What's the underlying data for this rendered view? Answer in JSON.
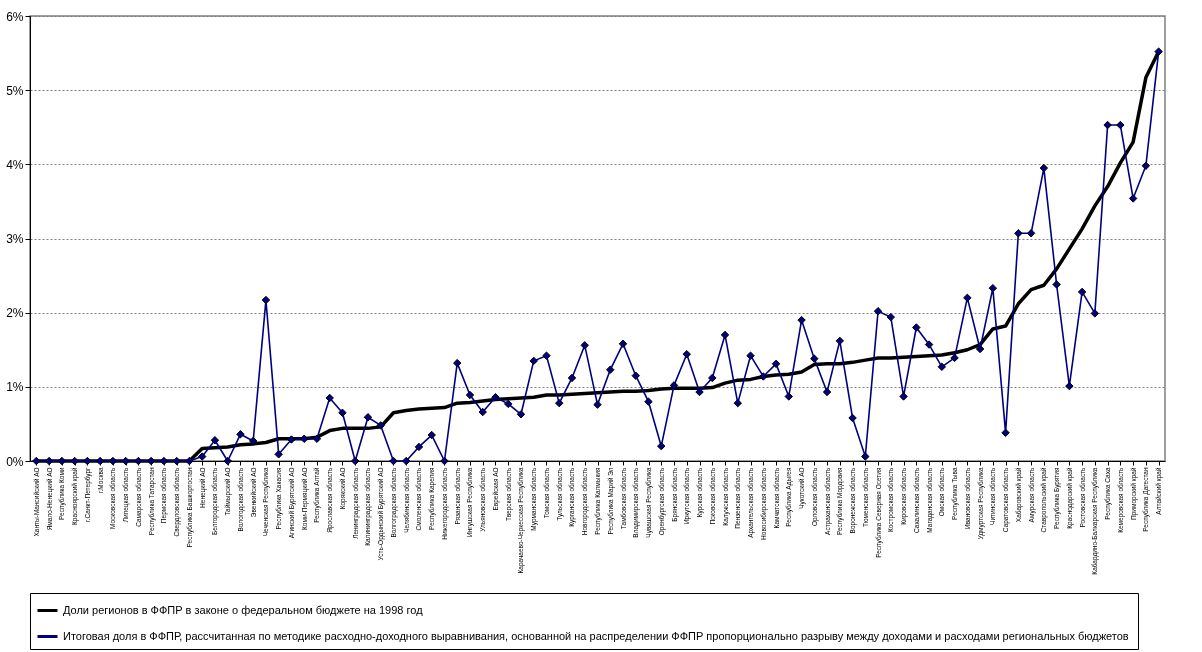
{
  "chart_data": {
    "type": "line",
    "categories": [
      "Ханты-Мансийский АО",
      "Ямало-Ненецкий АО",
      "Республика Коми",
      "Красноярский край",
      "г.Санкт-Петербург",
      "г.Москва",
      "Московская область",
      "Липецкая область",
      "Самарская область",
      "Республика Татарстан",
      "Пермская область",
      "Свердловская область",
      "Республика Башкортостан",
      "Ненецкий АО",
      "Белгородская область",
      "Таймырский АО",
      "Вологодская область",
      "Эвенкийский АО",
      "Чеченская Республика",
      "Республика Хакасия",
      "Агинский Бурятский АО",
      "Коми-Пермяцкий АО",
      "Республика Алтай",
      "Ярославская область",
      "Корякский АО",
      "Ленинградская область",
      "Калининградская область",
      "Усть-Ордынский Бурятский АО",
      "Волгоградская область",
      "Челябинская область",
      "Смоленская область",
      "Республика Карелия",
      "Нижегородская область",
      "Рязанская область",
      "Ингушская Республика",
      "Ульяновская область",
      "Еврейская АО",
      "Тверская область",
      "Карачаево-Черкесская Республика",
      "Мурманская область",
      "Томская область",
      "Тульская область",
      "Курганская область",
      "Новгородская область",
      "Республика Калмыкия",
      "Республика Марий Эл",
      "Тамбовская область",
      "Владимирская область",
      "Чувашская Республика",
      "Оренбургская область",
      "Брянская область",
      "Иркутская область",
      "Курская область",
      "Псковская область",
      "Калужская область",
      "Пензенская область",
      "Архангельская область",
      "Новосибирская область",
      "Камчатская область",
      "Республика Адыгея",
      "Чукотский АО",
      "Орловская область",
      "Астраханская область",
      "Республика Мордовия",
      "Воронежская область",
      "Тюменская область",
      "Республика Северная Осетия",
      "Костромская область",
      "Кировская область",
      "Сахалинская область",
      "Магаданская область",
      "Омская область",
      "Республика Тыва",
      "Ивановская область",
      "Удмуртская Республика",
      "Читинская область",
      "Саратовская область",
      "Хабаровский край",
      "Амурская область",
      "Ставропольский край",
      "Республика Бурятия",
      "Краснодарский край",
      "Ростовская область",
      "Кабардино-Балкарская Республика",
      "Республика Саха",
      "Кемеровская область",
      "Приморский край",
      "Республика Дагестан",
      "Алтайский край"
    ],
    "series": [
      {
        "name": "Доли регионов в ФФПР в законе о федеральном бюджете на 1998 год",
        "color": "#000000",
        "marker": "none",
        "values": [
          0,
          0,
          0,
          0,
          0,
          0,
          0,
          0,
          0,
          0,
          0,
          0,
          0,
          0.17,
          0.18,
          0.19,
          0.22,
          0.23,
          0.25,
          0.3,
          0.3,
          0.3,
          0.32,
          0.41,
          0.44,
          0.44,
          0.44,
          0.46,
          0.65,
          0.68,
          0.7,
          0.71,
          0.72,
          0.78,
          0.79,
          0.81,
          0.83,
          0.84,
          0.85,
          0.86,
          0.89,
          0.89,
          0.9,
          0.91,
          0.92,
          0.93,
          0.94,
          0.94,
          0.95,
          0.97,
          0.98,
          0.98,
          0.98,
          0.99,
          1.05,
          1.09,
          1.1,
          1.14,
          1.16,
          1.17,
          1.2,
          1.3,
          1.31,
          1.31,
          1.33,
          1.36,
          1.39,
          1.39,
          1.4,
          1.41,
          1.42,
          1.43,
          1.46,
          1.5,
          1.57,
          1.78,
          1.82,
          2.12,
          2.31,
          2.37,
          2.59,
          2.86,
          3.13,
          3.44,
          3.7,
          4.02,
          4.3,
          5.17,
          5.52
        ]
      },
      {
        "name": "Итоговая доля в ФФПР, рассчитанная по методике расходно-доходного выравнивания, основанной  на распределении ФФПР пропорционально разрыву между доходами и расходами региональных бюджетов",
        "color": "#000080",
        "marker": "diamond",
        "values": [
          0,
          0,
          0,
          0,
          0,
          0,
          0,
          0,
          0,
          0,
          0,
          0,
          0,
          0.06,
          0.28,
          0,
          0.36,
          0.27,
          2.17,
          0.09,
          0.29,
          0.3,
          0.3,
          0.85,
          0.65,
          0,
          0.59,
          0.48,
          0,
          0,
          0.19,
          0.35,
          0,
          1.32,
          0.89,
          0.66,
          0.86,
          0.77,
          0.63,
          1.35,
          1.42,
          0.78,
          1.12,
          1.56,
          0.76,
          1.23,
          1.58,
          1.15,
          0.8,
          0.2,
          1.02,
          1.44,
          0.93,
          1.12,
          1.7,
          0.78,
          1.42,
          1.14,
          1.31,
          0.87,
          1.9,
          1.38,
          0.93,
          1.62,
          0.58,
          0.06,
          2.02,
          1.94,
          0.87,
          1.8,
          1.57,
          1.27,
          1.39,
          2.2,
          1.51,
          2.33,
          0.38,
          3.07,
          3.07,
          3.95,
          2.38,
          1.01,
          2.28,
          1.99,
          4.53,
          4.53,
          3.54,
          3.98,
          5.52
        ]
      }
    ],
    "ylim": [
      0,
      6
    ],
    "yticks": [
      {
        "value": 0,
        "label": "0%"
      },
      {
        "value": 1,
        "label": "1%"
      },
      {
        "value": 2,
        "label": "2%"
      },
      {
        "value": 3,
        "label": "3%"
      },
      {
        "value": 4,
        "label": "4%"
      },
      {
        "value": 5,
        "label": "5%"
      },
      {
        "value": 6,
        "label": "6%"
      }
    ],
    "grid": "y",
    "legend": "bottom",
    "line_style": "solid"
  }
}
